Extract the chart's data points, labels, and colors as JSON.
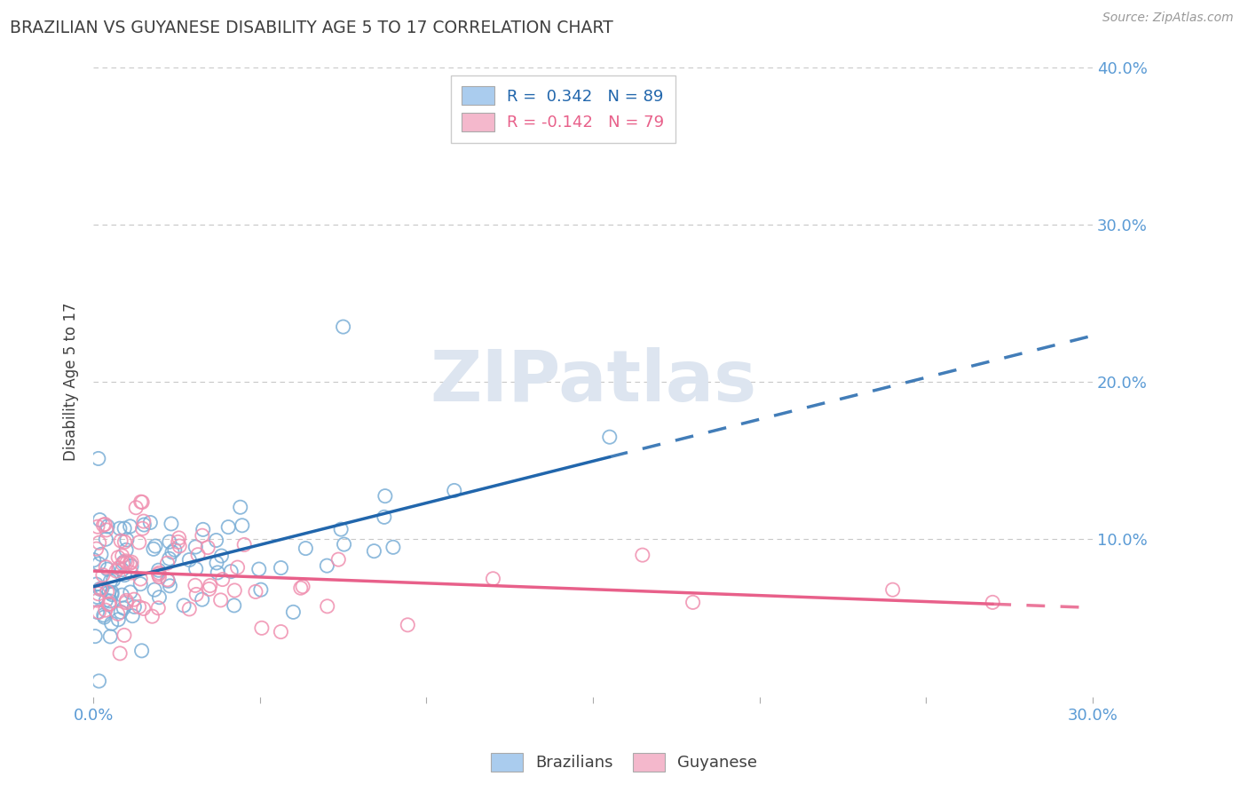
{
  "title": "BRAZILIAN VS GUYANESE DISABILITY AGE 5 TO 17 CORRELATION CHART",
  "source_text": "Source: ZipAtlas.com",
  "ylabel": "Disability Age 5 to 17",
  "xlim": [
    0.0,
    0.3
  ],
  "ylim": [
    0.0,
    0.4
  ],
  "xtick_pos": [
    0.0,
    0.05,
    0.1,
    0.15,
    0.2,
    0.25,
    0.3
  ],
  "xtick_labels": [
    "0.0%",
    "",
    "",
    "",
    "",
    "",
    "30.0%"
  ],
  "ytick_pos": [
    0.0,
    0.1,
    0.2,
    0.3,
    0.4
  ],
  "ytick_labels_right": [
    "",
    "10.0%",
    "20.0%",
    "30.0%",
    "40.0%"
  ],
  "blue_face_color": "none",
  "blue_edge_color": "#7aaed6",
  "pink_face_color": "none",
  "pink_edge_color": "#f090b0",
  "blue_line_color": "#2166ac",
  "pink_line_color": "#e8608a",
  "title_color": "#404040",
  "axis_tick_color": "#5b9bd5",
  "watermark_color": "#dde5f0",
  "background_color": "#ffffff",
  "grid_color": "#c8c8c8",
  "legend_blue_text": "R =  0.342   N = 89",
  "legend_pink_text": "R = -0.142   N = 79",
  "legend_blue_color": "#2166ac",
  "legend_pink_color": "#e8608a",
  "legend_blue_face": "#aaccee",
  "legend_pink_face": "#f4b8cc"
}
